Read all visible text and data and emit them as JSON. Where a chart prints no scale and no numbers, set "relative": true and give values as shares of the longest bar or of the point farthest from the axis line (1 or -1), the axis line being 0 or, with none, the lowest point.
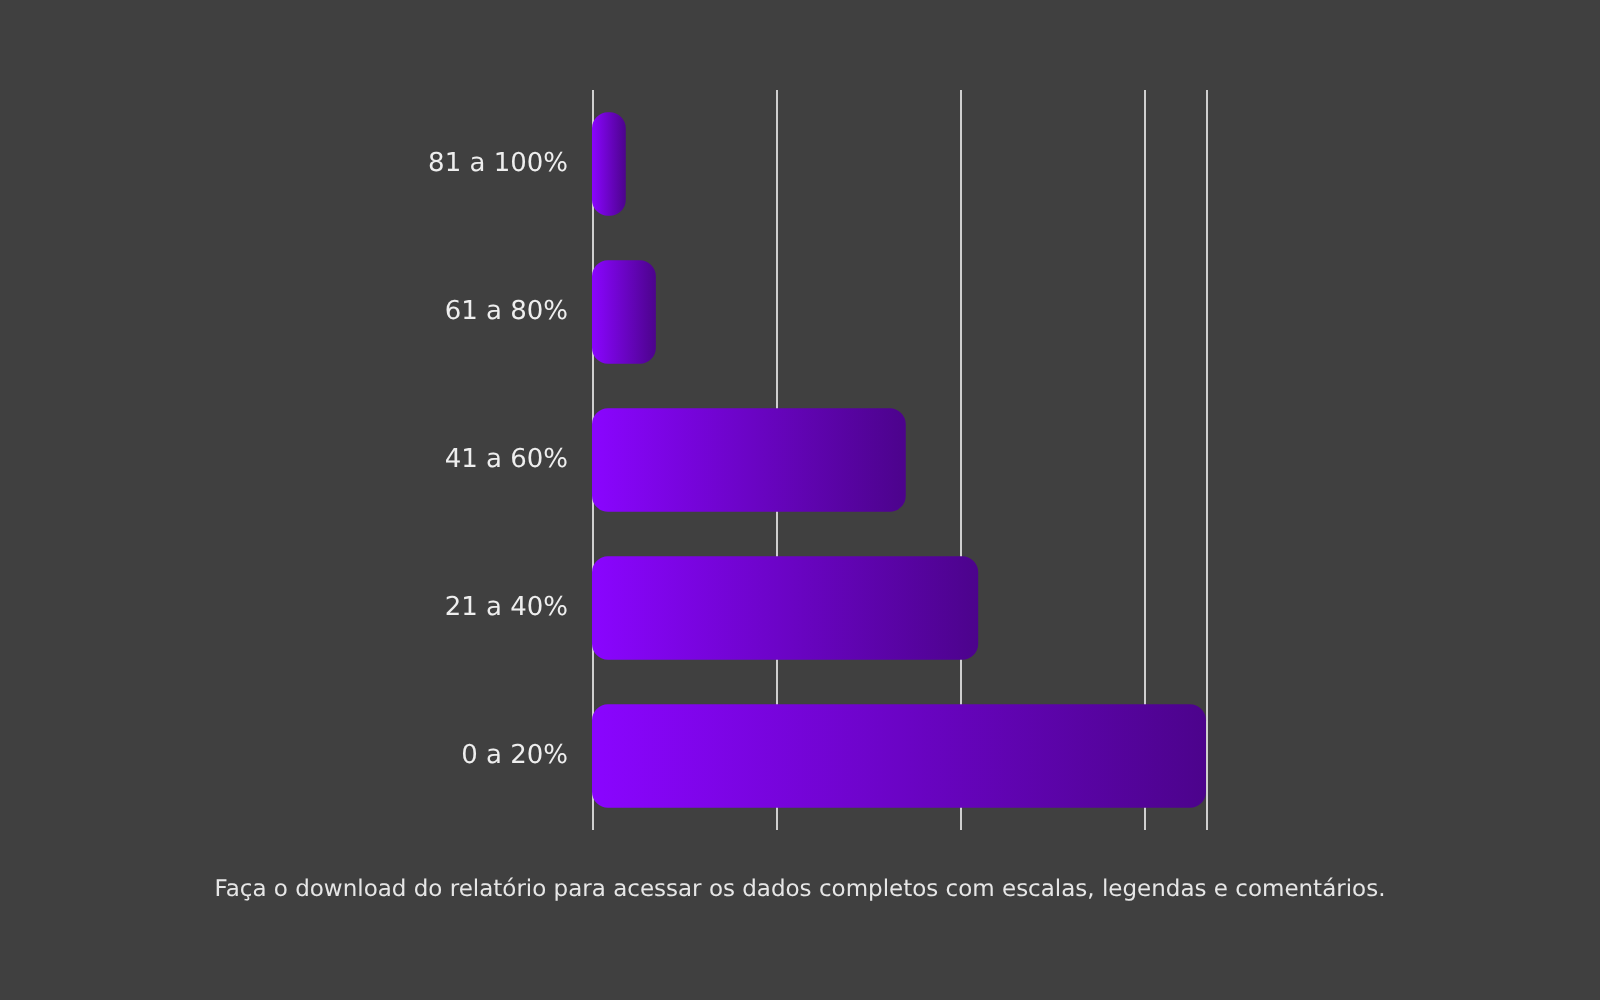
{
  "chart_data": {
    "type": "bar",
    "orientation": "horizontal",
    "relative": true,
    "categories": [
      "81 a 100%",
      "61 a 80%",
      "41 a 60%",
      "21 a 40%",
      "0 a 20%"
    ],
    "values": [
      0.055,
      0.104,
      0.511,
      0.629,
      1
    ],
    "color": "#8a05ff",
    "grid": "x",
    "annotations": [
      "Faça o download do relatório para acessar os dados completos com escalas, legendas e comentários."
    ]
  }
}
